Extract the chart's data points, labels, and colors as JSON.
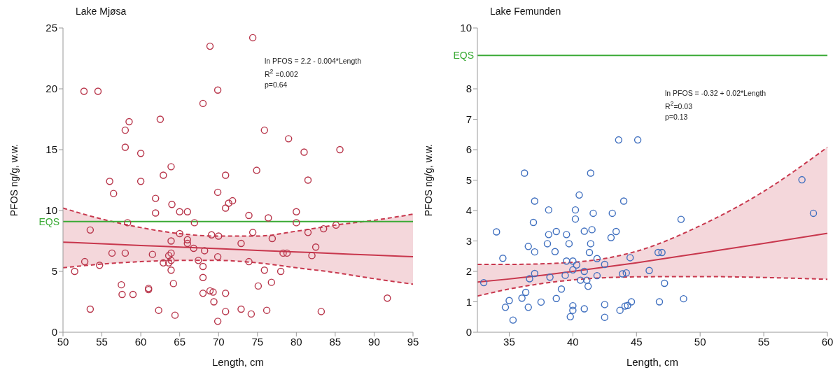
{
  "chart_data": [
    {
      "type": "scatter",
      "title": "Lake Mjøsa",
      "xlabel": "Length, cm",
      "ylabel": "PFOS ng/g, w.w.",
      "xlim": [
        50,
        95
      ],
      "xticks": [
        50,
        55,
        60,
        65,
        70,
        75,
        80,
        85,
        90,
        95
      ],
      "ylim": [
        0,
        25
      ],
      "yticks": [
        0,
        5,
        10,
        15,
        20,
        25
      ],
      "grid": false,
      "ref_lines": [
        {
          "axis": "y",
          "value": 9.1,
          "label": "EQS",
          "color": "#3aaa35"
        }
      ],
      "annotations": [
        "ln PFOS = 2.2 - 0.004*Length",
        "R$^{2}$ =0.002",
        "p=0.64"
      ],
      "series": [
        {
          "marker": "circle",
          "color": "#b8354a",
          "x": [
            52.7,
            54.5,
            51.5,
            52.8,
            53.5,
            53.5,
            54.7,
            56.0,
            56.5,
            56.3,
            57.5,
            57.6,
            58.0,
            58.5,
            58.0,
            58.0,
            58.3,
            59.0,
            60.0,
            60.0,
            61.0,
            61.0,
            61.5,
            61.9,
            61.9,
            62.3,
            62.5,
            62.9,
            62.9,
            63.6,
            63.6,
            63.9,
            64.0,
            63.9,
            63.9,
            63.9,
            63.9,
            64.2,
            64.4,
            65.0,
            65.0,
            66.0,
            66.0,
            66.0,
            66.8,
            66.9,
            67.4,
            68.0,
            68.0,
            68.0,
            68.0,
            68.2,
            68.9,
            68.9,
            69.3,
            69.1,
            69.4,
            69.9,
            69.9,
            70.0,
            69.9,
            69.9,
            70.9,
            70.9,
            70.9,
            70.9,
            71.3,
            71.8,
            74.4,
            75.9,
            79.0,
            81.0,
            85.6,
            74.9,
            81.5,
            73.9,
            76.4,
            80.0,
            80.0,
            74.4,
            76.9,
            81.5,
            83.5,
            85.1,
            72.9,
            82.5,
            78.3,
            78.8,
            82.0,
            73.9,
            75.9,
            78.0,
            75.1,
            76.8,
            91.7,
            72.9,
            74.2,
            76.2,
            83.2
          ],
          "values": [
            19.8,
            19.8,
            5.0,
            5.8,
            8.4,
            1.9,
            5.5,
            12.4,
            11.4,
            6.5,
            3.9,
            3.1,
            16.6,
            17.3,
            15.2,
            6.5,
            9.0,
            3.1,
            14.7,
            12.4,
            3.6,
            3.5,
            6.4,
            11.0,
            9.8,
            1.8,
            17.5,
            12.9,
            5.7,
            6.3,
            5.7,
            13.6,
            10.5,
            7.5,
            6.5,
            5.9,
            5.1,
            4.0,
            1.4,
            9.9,
            8.1,
            9.9,
            7.6,
            7.3,
            6.9,
            9.0,
            5.9,
            5.4,
            4.5,
            3.2,
            18.8,
            6.7,
            23.5,
            3.4,
            3.3,
            8.0,
            2.5,
            19.9,
            11.5,
            7.9,
            6.2,
            0.9,
            12.9,
            10.2,
            3.2,
            1.7,
            10.6,
            10.8,
            24.2,
            16.6,
            15.9,
            14.8,
            15.0,
            13.3,
            12.5,
            9.6,
            9.4,
            9.9,
            9.0,
            8.2,
            7.7,
            8.2,
            8.5,
            8.8,
            7.3,
            7.0,
            6.5,
            6.5,
            6.3,
            5.8,
            5.1,
            5.0,
            3.8,
            4.1,
            2.8,
            1.9,
            1.5,
            1.8,
            1.7
          ]
        },
        {
          "type": "line",
          "color": "#c8374d",
          "x": [
            50,
            55,
            60,
            65,
            70,
            75,
            80,
            85,
            90,
            95
          ],
          "values": [
            7.4,
            7.27,
            7.13,
            7.0,
            6.87,
            6.73,
            6.6,
            6.47,
            6.33,
            6.2
          ],
          "marker": "none",
          "lower": [
            5.3,
            5.6,
            5.8,
            5.9,
            5.9,
            5.7,
            5.3,
            4.9,
            4.4,
            3.95
          ],
          "upper": [
            10.2,
            9.3,
            8.6,
            8.1,
            7.9,
            7.9,
            8.3,
            8.8,
            9.2,
            9.7
          ]
        },
        {
          "type": "line",
          "color": "#c8374d",
          "marker": "none",
          "line_style": "dashed",
          "x": [
            50,
            55,
            60,
            65,
            70,
            75,
            80,
            85,
            90,
            95
          ],
          "values": [
            5.3,
            5.6,
            5.8,
            5.9,
            5.9,
            5.7,
            5.3,
            4.9,
            4.4,
            3.95
          ]
        },
        {
          "type": "line",
          "color": "#c8374d",
          "marker": "none",
          "line_style": "dashed",
          "x": [
            50,
            55,
            60,
            65,
            70,
            75,
            80,
            85,
            90,
            95
          ],
          "values": [
            10.2,
            9.3,
            8.6,
            8.1,
            7.9,
            7.9,
            8.3,
            8.8,
            9.2,
            9.7
          ]
        }
      ]
    },
    {
      "type": "scatter",
      "title": "Lake Femunden",
      "xlabel": "Length, cm",
      "ylabel": "PFOS ng/g, w.w.",
      "xlim": [
        32.5,
        60
      ],
      "xticks": [
        35,
        40,
        45,
        50,
        55,
        60
      ],
      "ylim": [
        0,
        10
      ],
      "yticks": [
        0,
        1,
        2,
        3,
        4,
        5,
        6,
        7,
        8,
        10
      ],
      "grid": false,
      "ref_lines": [
        {
          "axis": "y",
          "value": 9.1,
          "label": "EQS",
          "color": "#3aaa35"
        }
      ],
      "annotations": [
        "ln PFOS = -0.32 + 0.02*Length",
        "R$^{2}$=0.03",
        "p=0.13"
      ],
      "series": [
        {
          "marker": "circle",
          "color": "#3f6fbf",
          "x": [
            33.0,
            34.0,
            34.5,
            34.7,
            35.0,
            35.3,
            36.0,
            36.3,
            36.2,
            36.5,
            36.5,
            36.6,
            37.0,
            36.9,
            37.0,
            37.0,
            37.5,
            38.0,
            38.1,
            38.1,
            38.2,
            38.6,
            38.7,
            38.7,
            39.1,
            39.4,
            39.5,
            39.5,
            39.7,
            39.8,
            40.0,
            40.0,
            40.0,
            40.0,
            40.2,
            40.2,
            40.3,
            40.5,
            40.6,
            40.9,
            40.9,
            41.1,
            40.9,
            41.2,
            41.3,
            41.4,
            41.4,
            41.5,
            41.6,
            41.9,
            41.9,
            43.6,
            45.1,
            44.0,
            43.1,
            43.4,
            43.0,
            42.5,
            44.5,
            43.9,
            44.2,
            46.0,
            46.7,
            47.0,
            48.5,
            47.2,
            42.5,
            42.5,
            43.7,
            44.1,
            44.3,
            44.6,
            46.8,
            48.7,
            58.0,
            58.9
          ],
          "values": [
            1.63,
            3.3,
            2.43,
            0.82,
            1.04,
            0.4,
            1.12,
            1.31,
            5.23,
            2.82,
            0.82,
            1.76,
            1.93,
            3.61,
            4.31,
            2.64,
            0.99,
            2.91,
            4.02,
            3.21,
            1.81,
            2.65,
            1.11,
            3.31,
            1.42,
            1.87,
            3.21,
            2.34,
            2.91,
            0.51,
            2.34,
            0.87,
            0.72,
            2.05,
            3.72,
            4.02,
            2.21,
            4.51,
            1.71,
            3.32,
            2.0,
            1.71,
            0.77,
            1.51,
            2.62,
            2.91,
            5.23,
            3.37,
            3.91,
            2.42,
            1.86,
            6.32,
            6.32,
            4.31,
            3.91,
            3.31,
            3.11,
            2.23,
            2.45,
            1.92,
            1.95,
            2.03,
            2.62,
            2.62,
            3.71,
            1.61,
            0.91,
            0.49,
            0.72,
            0.86,
            0.88,
            1.0,
            1.0,
            1.1,
            5.01,
            3.91
          ]
        },
        {
          "type": "line",
          "color": "#c8374d",
          "x": [
            32.5,
            35,
            40,
            45,
            50,
            55,
            60
          ],
          "values": [
            1.65,
            1.75,
            2.0,
            2.28,
            2.6,
            2.92,
            3.25
          ],
          "marker": "none",
          "lower": [
            1.19,
            1.42,
            1.72,
            1.82,
            1.83,
            1.8,
            1.74
          ],
          "upper": [
            2.23,
            2.23,
            2.3,
            2.66,
            3.5,
            4.63,
            6.08
          ]
        },
        {
          "type": "line",
          "color": "#c8374d",
          "marker": "none",
          "line_style": "dashed",
          "x": [
            32.5,
            35,
            40,
            45,
            50,
            55,
            60
          ],
          "values": [
            1.19,
            1.42,
            1.72,
            1.82,
            1.83,
            1.8,
            1.74
          ]
        },
        {
          "type": "line",
          "color": "#c8374d",
          "marker": "none",
          "line_style": "dashed",
          "x": [
            32.5,
            35,
            40,
            45,
            50,
            55,
            60
          ],
          "values": [
            2.23,
            2.23,
            2.3,
            2.66,
            3.5,
            4.63,
            6.08
          ]
        }
      ]
    }
  ]
}
